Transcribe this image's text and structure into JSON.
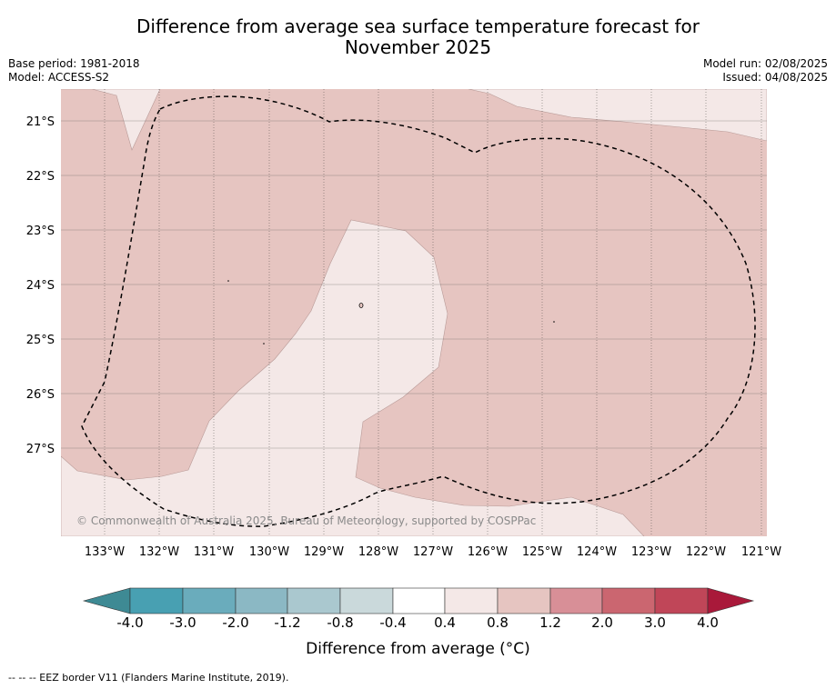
{
  "title_line1": "Difference from average sea surface temperature forecast for",
  "title_line2": "November 2025",
  "meta": {
    "base_period": "Base period: 1981-2018",
    "model": "Model: ACCESS-S2",
    "model_run": "Model run: 02/08/2025",
    "issued": "Issued: 04/08/2025"
  },
  "map": {
    "lat_labels": [
      "21°S",
      "22°S",
      "23°S",
      "24°S",
      "25°S",
      "26°S",
      "27°S"
    ],
    "lon_labels": [
      "133°W",
      "132°W",
      "131°W",
      "130°W",
      "129°W",
      "128°W",
      "127°W",
      "126°W",
      "125°W",
      "124°W",
      "123°W",
      "122°W",
      "121°W"
    ],
    "copyright": "© Commonwealth of Australia 2025, Bureau of Meteorology, supported by COSPPac",
    "colors": {
      "anomaly_0_4_to_0_8": "#f4e8e7",
      "anomaly_0_8_to_1_2": "#e6c5c1",
      "eez_border": "#000000"
    }
  },
  "colorbar": {
    "tick_labels": [
      "-4.0",
      "-3.0",
      "-2.0",
      "-1.2",
      "-0.8",
      "-0.4",
      "0.4",
      "0.8",
      "1.2",
      "2.0",
      "3.0",
      "4.0"
    ],
    "colors": [
      "#3e8a94",
      "#48a0b2",
      "#6aacbc",
      "#8bb8c4",
      "#aac8cf",
      "#cad9db",
      "#ffffff",
      "#f4e8e7",
      "#e6c5c1",
      "#d88f97",
      "#cb6670",
      "#c04658",
      "#a9193a"
    ],
    "label": "Difference from average (°C)"
  },
  "footnote": "--  --  -- EEZ border V11 (Flanders Marine Institute, 2019)."
}
